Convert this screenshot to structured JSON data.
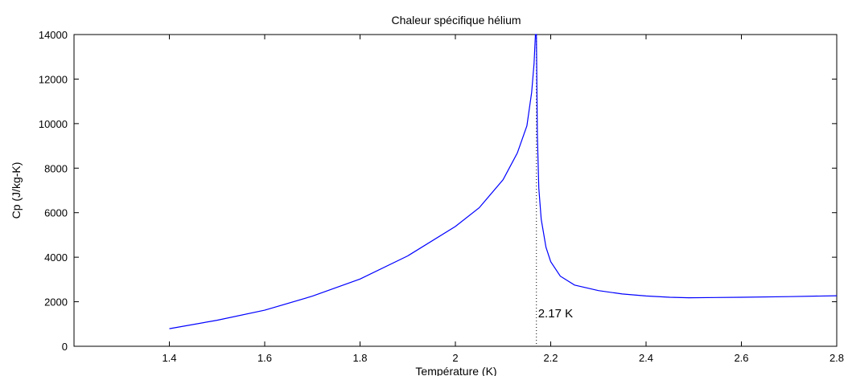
{
  "chart_data": {
    "type": "line",
    "title": "Chaleur spécifique hélium",
    "xlabel": "Température (K)",
    "ylabel": "Cp (J/kg-K)",
    "xlim": [
      1.2,
      2.8
    ],
    "ylim": [
      0,
      14000
    ],
    "xticks": [
      1.4,
      1.6,
      1.8,
      2,
      2.2,
      2.4,
      2.6,
      2.8
    ],
    "xtick_labels": [
      "1.4",
      "1.6",
      "1.8",
      "2",
      "2.2",
      "2.4",
      "2.6",
      "2.8"
    ],
    "yticks": [
      0,
      2000,
      4000,
      6000,
      8000,
      10000,
      12000,
      14000
    ],
    "ytick_labels": [
      "0",
      "2000",
      "4000",
      "6000",
      "8000",
      "10000",
      "12000",
      "14000"
    ],
    "grid": false,
    "line_color": "#0000ff",
    "series": [
      {
        "x": [
          1.4,
          1.5,
          1.6,
          1.7,
          1.8,
          1.9,
          2.0,
          2.05,
          2.1,
          2.13,
          2.15,
          2.16,
          2.165,
          2.168,
          2.17,
          2.172,
          2.175,
          2.18,
          2.19,
          2.2,
          2.22,
          2.25,
          2.3,
          2.35,
          2.4,
          2.45,
          2.49,
          2.6,
          2.7,
          2.8
        ],
        "y": [
          790,
          1170,
          1620,
          2250,
          3020,
          4060,
          5380,
          6220,
          7480,
          8680,
          9900,
          11400,
          12700,
          14000,
          14000,
          9500,
          7100,
          5700,
          4450,
          3800,
          3150,
          2750,
          2500,
          2350,
          2260,
          2200,
          2180,
          2200,
          2230,
          2270
        ]
      }
    ],
    "vline": {
      "x": 2.17,
      "style": "dotted",
      "color": "#000000"
    },
    "annotation": {
      "text": "2.17 K",
      "x": 2.17,
      "y": 1300
    }
  }
}
